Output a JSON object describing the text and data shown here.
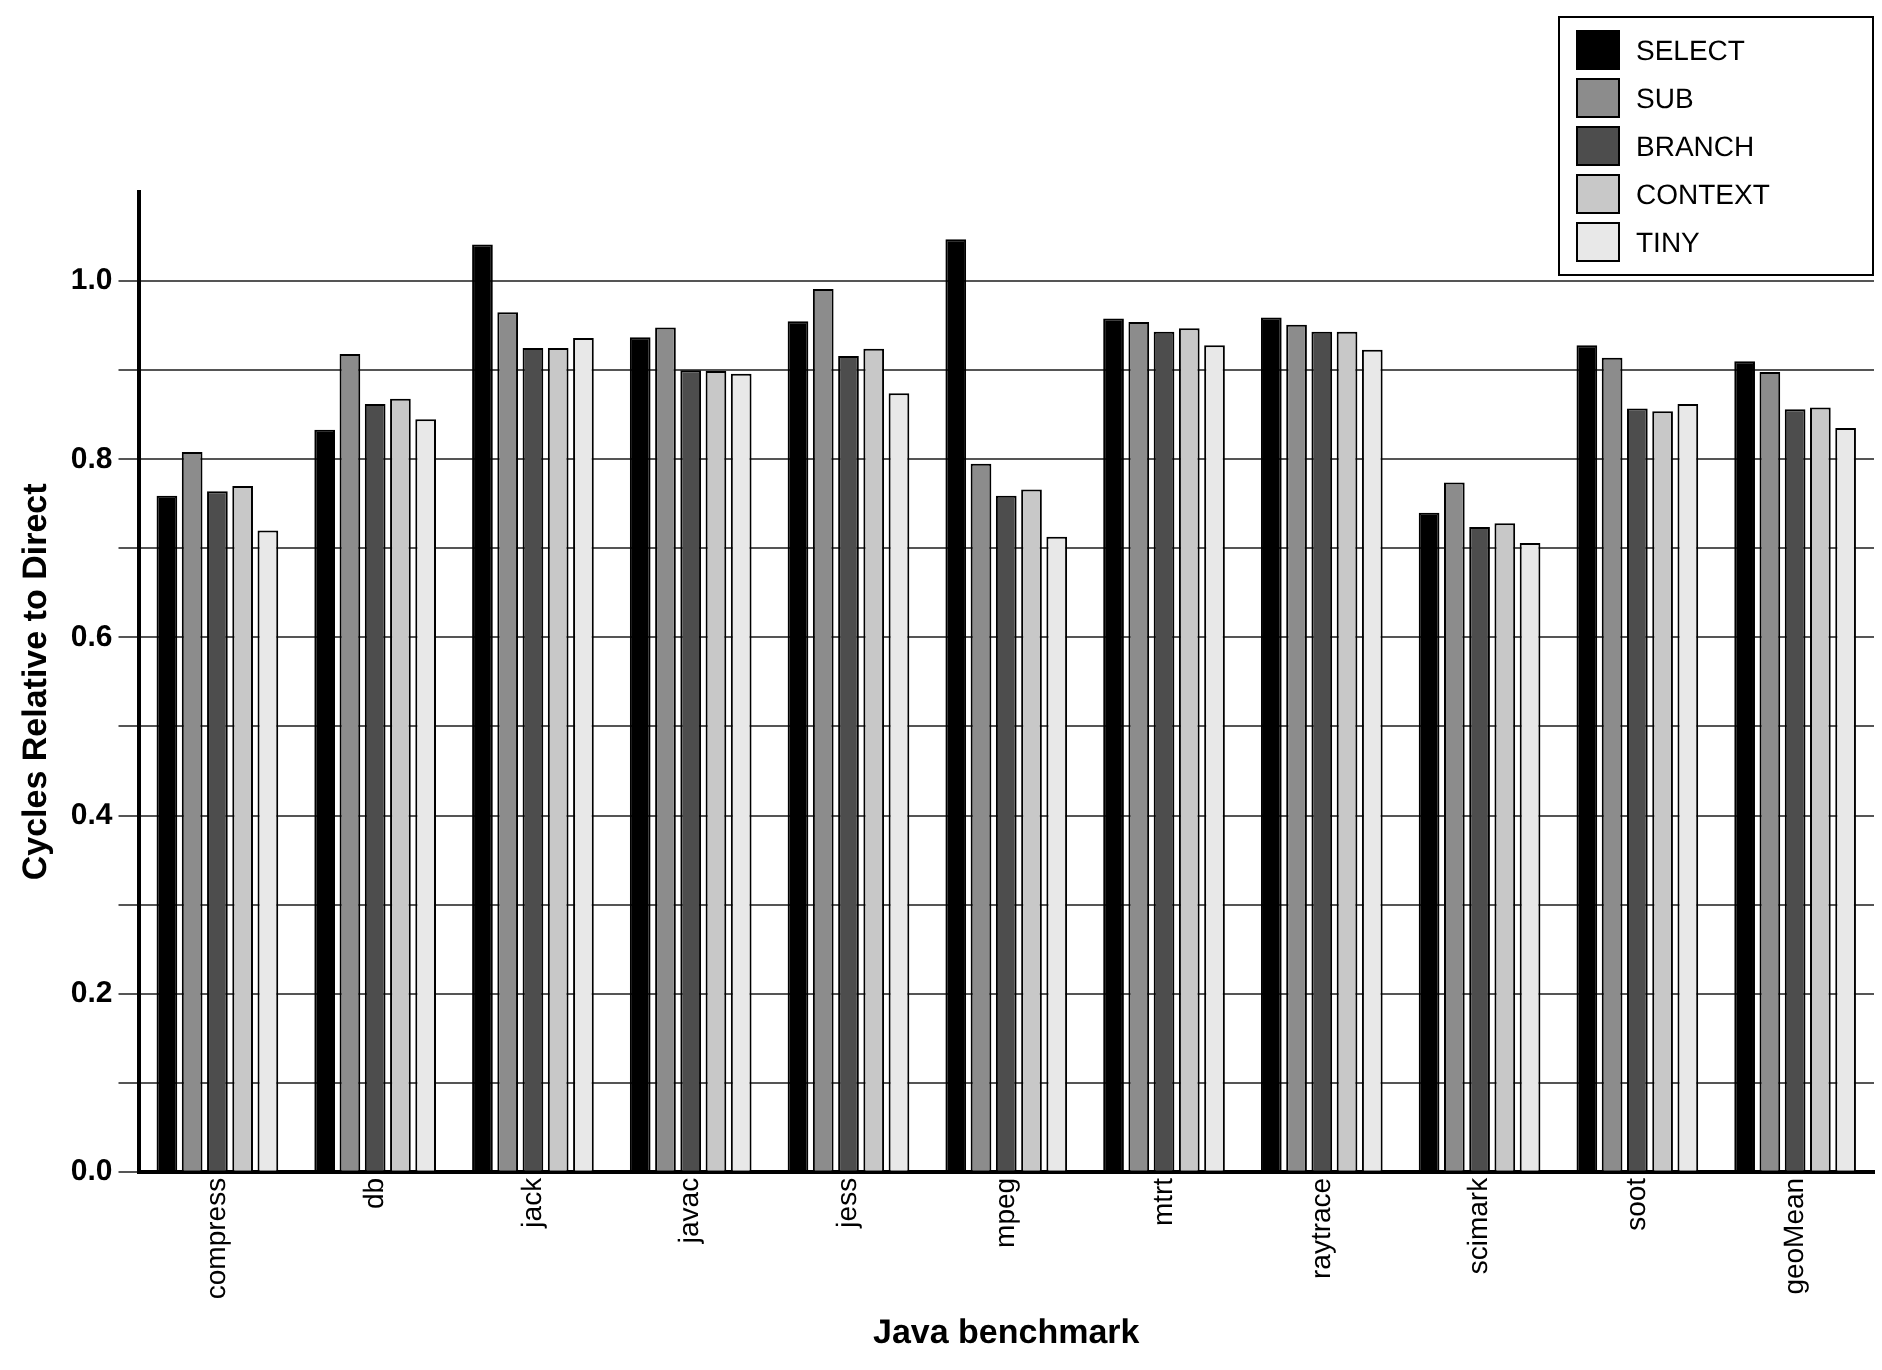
{
  "chart_data": {
    "type": "bar",
    "xlabel": "Java benchmark",
    "ylabel": "Cycles Relative to Direct",
    "categories": [
      "compress",
      "db",
      "jack",
      "javac",
      "jess",
      "mpeg",
      "mtrt",
      "raytrace",
      "scimark",
      "soot",
      "geoMean"
    ],
    "series": [
      {
        "name": "SELECT",
        "color": "#000000",
        "values": [
          0.759,
          0.833,
          1.041,
          0.937,
          0.955,
          1.047,
          0.958,
          0.959,
          0.74,
          0.928,
          0.91
        ]
      },
      {
        "name": "SUB",
        "color": "#8c8c8c",
        "values": [
          0.808,
          0.918,
          0.965,
          0.948,
          0.991,
          0.795,
          0.954,
          0.951,
          0.774,
          0.914,
          0.898
        ]
      },
      {
        "name": "BRANCH",
        "color": "#4d4d4d",
        "values": [
          0.764,
          0.862,
          0.925,
          0.9,
          0.916,
          0.759,
          0.943,
          0.943,
          0.724,
          0.857,
          0.856
        ]
      },
      {
        "name": "CONTEXT",
        "color": "#c8c8c8",
        "values": [
          0.77,
          0.868,
          0.925,
          0.899,
          0.924,
          0.766,
          0.947,
          0.943,
          0.728,
          0.854,
          0.858
        ]
      },
      {
        "name": "TINY",
        "color": "#e8e8e8",
        "values": [
          0.72,
          0.845,
          0.936,
          0.896,
          0.874,
          0.713,
          0.928,
          0.923,
          0.706,
          0.862,
          0.835
        ]
      }
    ],
    "ylim": [
      0,
      1.1
    ],
    "yticks": [
      {
        "value": 0,
        "label": "0.0"
      },
      {
        "value": 0.1,
        "label": null
      },
      0.2,
      {
        "value": 0.3,
        "label": null
      },
      0.4,
      {
        "value": 0.5,
        "label": null
      },
      0.6,
      {
        "value": 0.7,
        "label": null
      },
      0.8,
      {
        "value": 0.9,
        "label": null
      },
      {
        "value": 1,
        "label": "1.0"
      }
    ],
    "grid": "y",
    "legend": "top right"
  }
}
